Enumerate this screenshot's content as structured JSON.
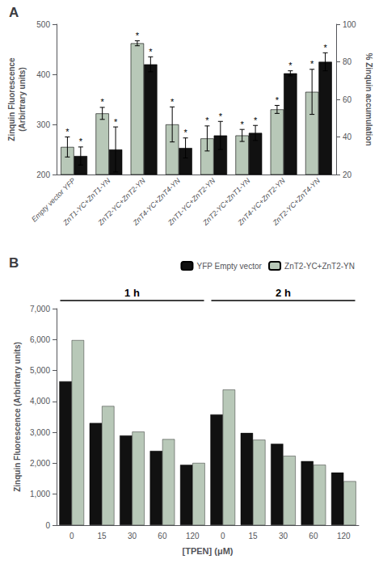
{
  "chart_data": [
    {
      "type": "bar",
      "title": "A",
      "categories": [
        "Empty vector YFP",
        "ZnT1-YC+ZnT1-YN",
        "ZnT2-YC+ZnT2-YN",
        "ZnT4-YC+ZnT4-YN",
        "ZnT1-YC+ZnT2-YN",
        "ZnT2-YC+ZnT1-YN",
        "ZnT4-YC+ZnT2-YN",
        "ZnT2-YC+ZnT4-YN"
      ],
      "series": [
        {
          "color": "#b8c8b8",
          "values": [
            255,
            322,
            462,
            300,
            272,
            278,
            330,
            365
          ],
          "errors": [
            20,
            12,
            5,
            35,
            25,
            12,
            8,
            45
          ],
          "annotations": [
            "*",
            "*",
            "*",
            "*",
            "*",
            "*",
            "*",
            "*"
          ]
        },
        {
          "color": "#111111",
          "values": [
            237,
            250,
            420,
            253,
            278,
            283,
            402,
            425
          ],
          "errors": [
            18,
            45,
            15,
            20,
            28,
            15,
            5,
            18
          ],
          "annotations": [
            "*",
            "*",
            "*",
            "*",
            "*",
            "*",
            "*",
            "*"
          ]
        }
      ],
      "ylabel": "Zinquin Fluorescence\n(Arbirtrary units)",
      "ylim": [
        200,
        500
      ],
      "yticks": [
        200,
        300,
        400,
        500
      ],
      "y2label": "% Zinquin accumulation",
      "y2lim": [
        20,
        100
      ],
      "y2ticks": [
        20,
        40,
        60,
        80,
        100
      ],
      "grid": false
    },
    {
      "type": "bar",
      "title": "B",
      "categories": [
        "0",
        "15",
        "30",
        "60",
        "120",
        "0",
        "15",
        "30",
        "60",
        "120"
      ],
      "group_labels": [
        "1 h",
        "2 h"
      ],
      "series": [
        {
          "name": "YFP Empty vector",
          "color": "#111111",
          "values": [
            4650,
            3300,
            2900,
            2400,
            1950,
            3580,
            2980,
            2630,
            2070,
            1700
          ]
        },
        {
          "name": "ZnT2-YC+ZnT2-YN",
          "color": "#b8c8b8",
          "values": [
            5980,
            3850,
            3020,
            2780,
            2010,
            4380,
            2760,
            2240,
            1950,
            1420
          ]
        }
      ],
      "xlabel": "[TPEN] (μM)",
      "ylabel": "Zinquin Fluorescence (Arbirtrary units)",
      "ylim": [
        0,
        7000
      ],
      "yticks": [
        0,
        1000,
        2000,
        3000,
        4000,
        5000,
        6000,
        7000
      ],
      "legend": "upper right",
      "grid": false
    }
  ]
}
